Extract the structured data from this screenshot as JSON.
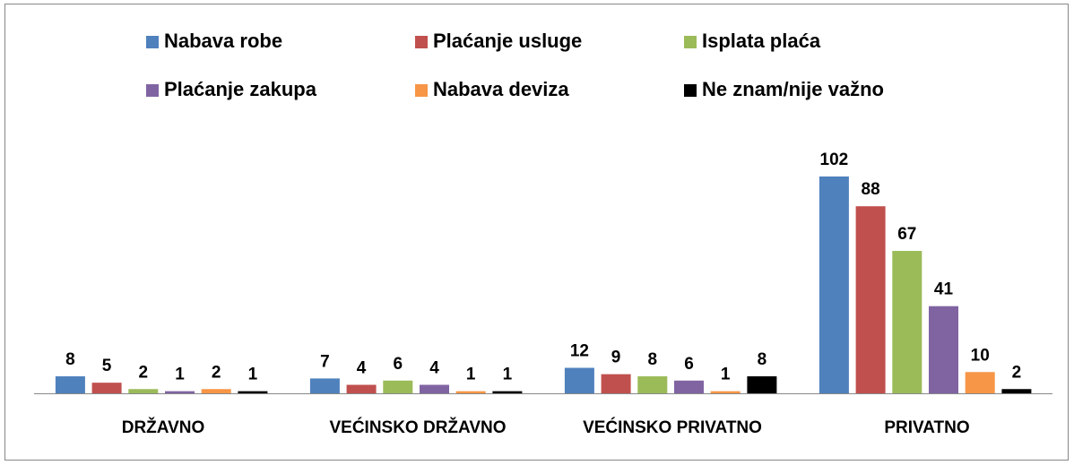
{
  "chart_data": {
    "type": "bar",
    "categories": [
      "DRŽAVNO",
      "VEĆINSKO DRŽAVNO",
      "VEĆINSKO PRIVATNO",
      "PRIVATNO"
    ],
    "series": [
      {
        "name": "Nabava robe",
        "color": "#4f81bd",
        "values": [
          8,
          7,
          12,
          102
        ]
      },
      {
        "name": "Plaćanje usluge",
        "color": "#c0504d",
        "values": [
          5,
          4,
          9,
          88
        ]
      },
      {
        "name": "Isplata plaća",
        "color": "#9bbb59",
        "values": [
          2,
          6,
          8,
          67
        ]
      },
      {
        "name": "Plaćanje zakupa",
        "color": "#8064a2",
        "values": [
          1,
          4,
          6,
          41
        ]
      },
      {
        "name": "Nabava deviza",
        "color": "#f79646",
        "values": [
          2,
          1,
          1,
          10
        ]
      },
      {
        "name": "Ne znam/nije važno",
        "color": "#000000",
        "values": [
          1,
          1,
          8,
          2
        ]
      }
    ],
    "legend": "top"
  }
}
